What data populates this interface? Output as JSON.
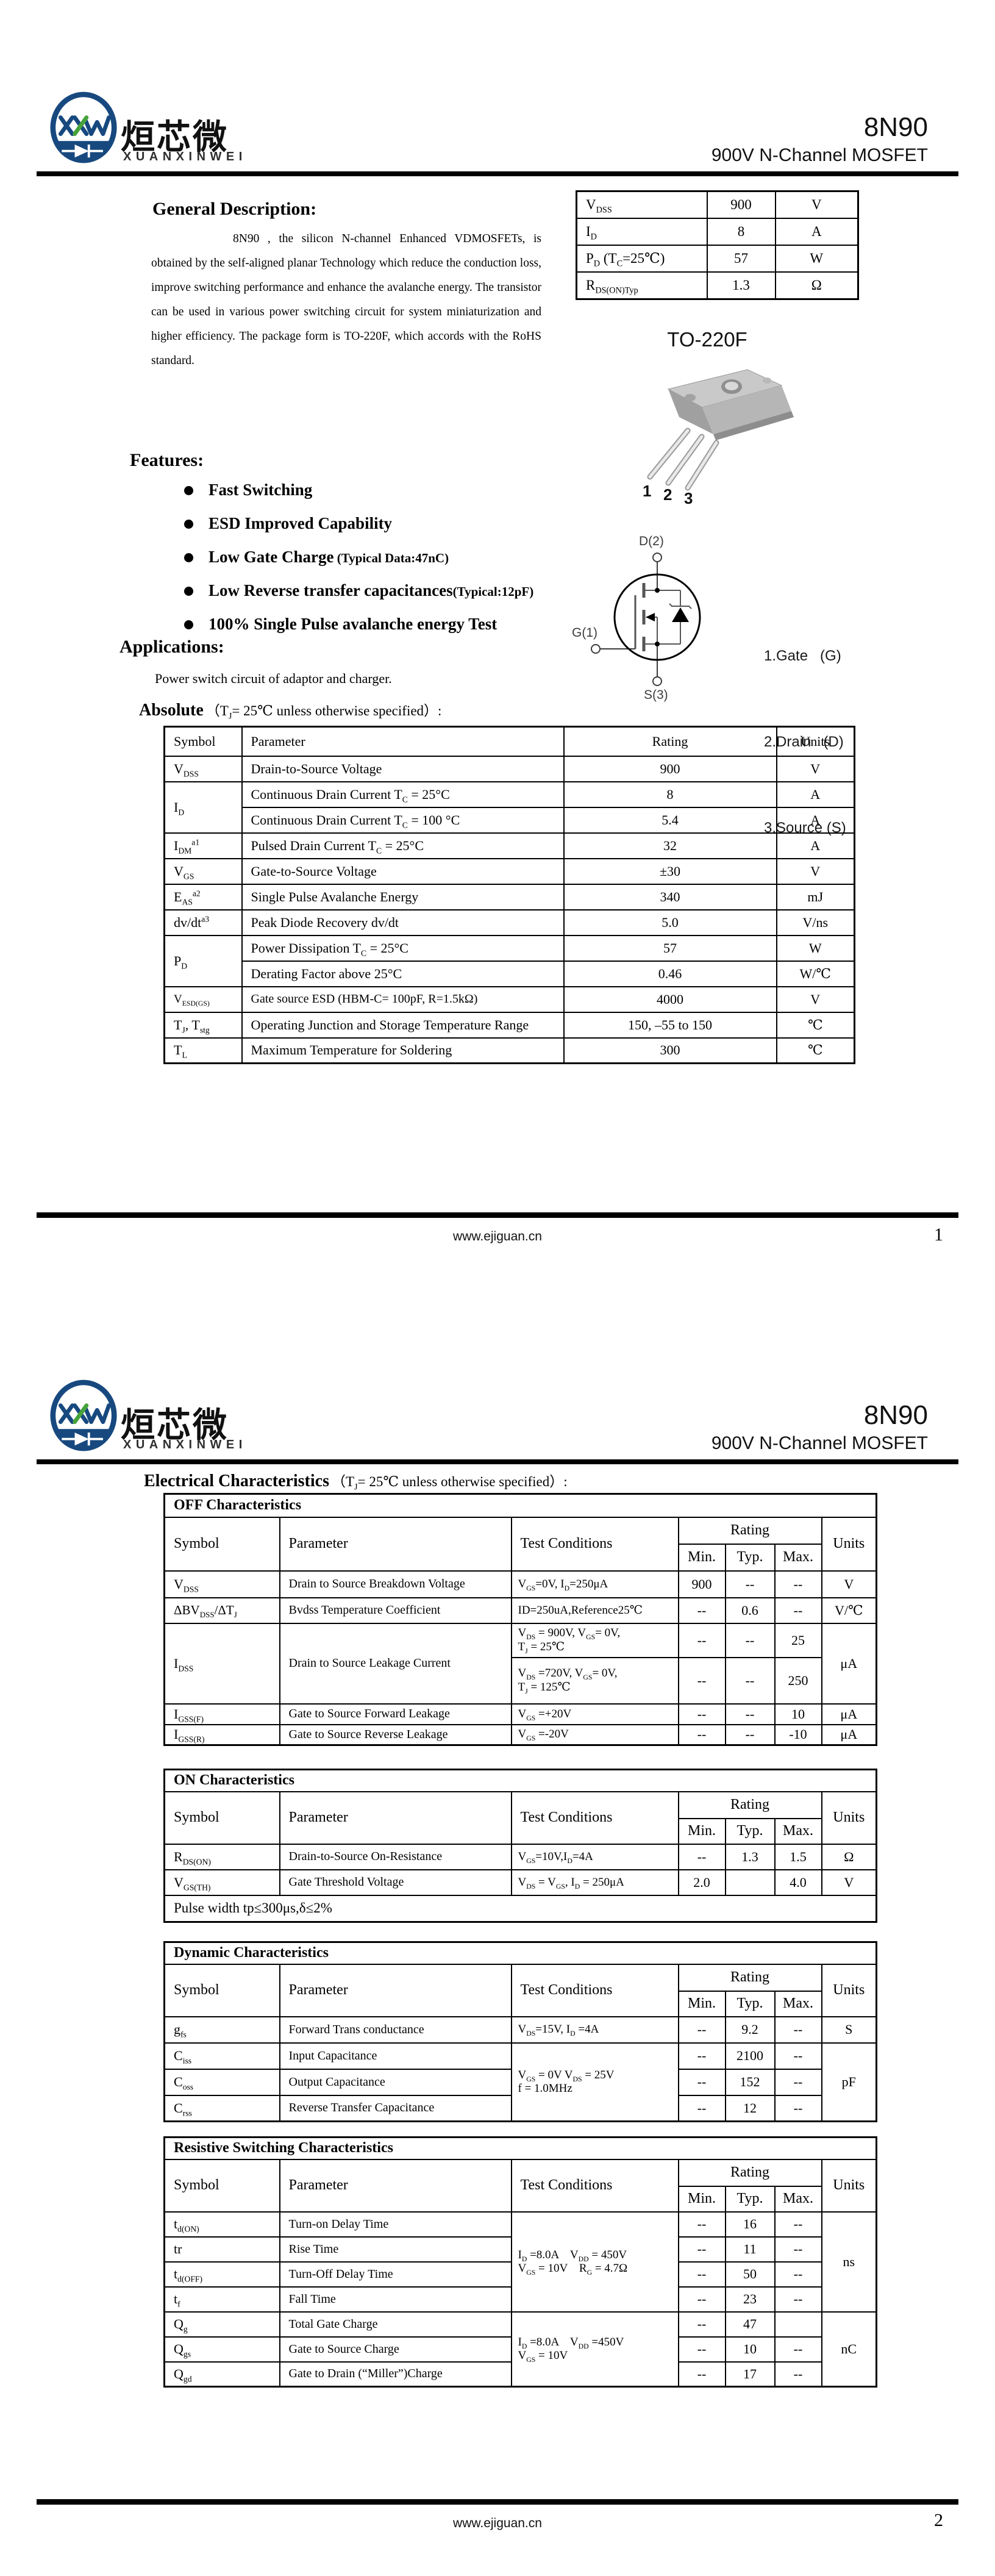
{
  "doc": {
    "brand_cn": "烜芯微",
    "brand_en": "XUANXINWEI",
    "part": "8N90",
    "subtitle": "900V N-Channel MOSFET",
    "footer_url": "www.ejiguan.cn"
  },
  "page1": {
    "num": "1",
    "general": {
      "heading": "General Description:",
      "body": "8N90 , the silicon N-channel Enhanced VDMOSFETs, is obtained by the self-aligned planar Technology which reduce the conduction loss, improve switching performance and enhance the avalanche energy. The transistor can be used in various power switching circuit for system miniaturization and higher efficiency. The package form is TO-220F, which accords with the RoHS standard."
    },
    "summary": {
      "rows": [
        {
          "param": "V~DSS~",
          "value": "900",
          "unit": "V"
        },
        {
          "param": "I~D~",
          "value": "8",
          "unit": "A"
        },
        {
          "param": "P~D~ (T~C~=25℃)",
          "value": "57",
          "unit": "W"
        },
        {
          "param": "R~DS(ON)Typ~",
          "value": "1.3",
          "unit": "Ω"
        }
      ]
    },
    "package": {
      "label": "TO-220F",
      "pins": [
        "1",
        "2",
        "3"
      ]
    },
    "diagram": {
      "d": "D(2)",
      "g": "G(1)",
      "s": "S(3)",
      "legend": [
        "1.Gate   (G)",
        "2.Drain   (D)",
        "3.Source (S)"
      ]
    },
    "features": {
      "heading": "Features:",
      "items": [
        {
          "main": "Fast Switching",
          "note": ""
        },
        {
          "main": "ESD Improved Capability",
          "note": ""
        },
        {
          "main": "Low Gate Charge",
          "note": "  (Typical Data:47nC)"
        },
        {
          "main": "Low Reverse transfer capacitances",
          "note": "(Typical:12pF)"
        },
        {
          "main": "100% Single Pulse avalanche energy Test",
          "note": ""
        }
      ]
    },
    "applications": {
      "heading": "Applications:",
      "body": "Power switch circuit of adaptor and charger."
    },
    "absolute": {
      "heading_bold": "Absolute",
      "heading_rest": "（T~J~= 25℃ unless otherwise specified）:",
      "headers": {
        "symbol": "Symbol",
        "parameter": "Parameter",
        "rating": "Rating",
        "units": "Units"
      },
      "rows": [
        {
          "sym": "V~DSS~",
          "par": "Drain-to-Source Voltage",
          "val": "900",
          "unit": "V"
        },
        {
          "sym": "I~D~",
          "par": "Continuous Drain Current T~C~ = 25°C",
          "val": "8",
          "unit": "A"
        },
        {
          "par": "Continuous Drain Current T~C~ = 100 °C",
          "val": "5.4",
          "unit": "A"
        },
        {
          "sym": "I~DM~^a1^",
          "par": "Pulsed Drain Current T~C~ = 25°C",
          "val": "32",
          "unit": "A"
        },
        {
          "sym": "V~GS~",
          "par": "Gate-to-Source Voltage",
          "val": "±30",
          "unit": "V"
        },
        {
          "sym": "E~AS~^a2^",
          "par": "Single Pulse Avalanche Energy",
          "val": "340",
          "unit": "mJ"
        },
        {
          "sym": "dv/dt^a3^",
          "par": "Peak Diode Recovery dv/dt",
          "val": "5.0",
          "unit": "V/ns"
        },
        {
          "sym": "P~D~",
          "par": "Power Dissipation T~C~ = 25°C",
          "val": "57",
          "unit": "W"
        },
        {
          "par": "Derating Factor above 25°C",
          "val": "0.46",
          "unit": "W/℃"
        },
        {
          "sym": "V~ESD(GS)~",
          "par": "Gate source ESD (HBM-C= 100pF, R=1.5kΩ)",
          "val": "4000",
          "unit": "V"
        },
        {
          "sym": "T~J~,  T~stg~",
          "par": "Operating Junction and Storage Temperature Range",
          "val": "150, –55 to 150",
          "unit": "℃"
        },
        {
          "sym": "T~L~",
          "par": "Maximum Temperature for Soldering",
          "val": "300",
          "unit": "℃"
        }
      ]
    }
  },
  "page2": {
    "num": "2",
    "heading_bold": "Electrical Characteristics",
    "heading_rest": "（T~J~= 25℃ unless otherwise specified）:",
    "col": {
      "symbol": "Symbol",
      "parameter": "Parameter",
      "test": "Test Conditions",
      "rating": "Rating",
      "min": "Min.",
      "typ": "Typ.",
      "max": "Max.",
      "units": "Units"
    },
    "off": {
      "title": "OFF Characteristics",
      "rows": [
        {
          "sym": "V~DSS~",
          "par": "Drain to Source Breakdown Voltage",
          "test": "V~GS~=0V, I~D~=250μA",
          "min": "900",
          "typ": "--",
          "max": "--",
          "unit": "V"
        },
        {
          "sym": "ΔBV~DSS~/ΔT~J~",
          "par": "Bvdss Temperature Coefficient",
          "test": "ID=250uA,Reference25℃",
          "min": "--",
          "typ": "0.6",
          "max": "--",
          "unit": "V/℃"
        },
        {
          "sym": "I~DSS~",
          "par": "Drain to Source Leakage Current",
          "test": "V~DS~ = 900V, V~GS~= 0V,\nT~J~ = 25℃",
          "min": "--",
          "typ": "--",
          "max": "25",
          "unit": "μA"
        },
        {
          "test": "V~DS~ =720V, V~GS~= 0V,\nT~J~ = 125℃",
          "min": "--",
          "typ": "--",
          "max": "250"
        },
        {
          "sym": "I~GSS(F)~",
          "par": "Gate to Source Forward Leakage",
          "test": "V~GS~ =+20V",
          "min": "--",
          "typ": "--",
          "max": "10",
          "unit": "μA"
        },
        {
          "sym": "I~GSS(R)~",
          "par": "Gate to Source Reverse Leakage",
          "test": "V~GS~ =-20V",
          "min": "--",
          "typ": "--",
          "max": "-10",
          "unit": "μA"
        }
      ]
    },
    "on": {
      "title": "ON Characteristics",
      "rows": [
        {
          "sym": "R~DS(ON)~",
          "par": "Drain-to-Source On-Resistance",
          "test": "V~GS~=10V,I~D~=4A",
          "min": "--",
          "typ": "1.3",
          "max": "1.5",
          "unit": "Ω"
        },
        {
          "sym": "V~GS(TH)~",
          "par": "Gate Threshold Voltage",
          "test": "V~DS~ = V~GS~, I~D~ = 250μA",
          "min": "2.0",
          "typ": "",
          "max": "4.0",
          "unit": "V"
        }
      ],
      "note": "Pulse width tp≤300μs,δ≤2%"
    },
    "dyn": {
      "title": "Dynamic Characteristics",
      "rows": [
        {
          "sym": "g~fs~",
          "par": "Forward Trans conductance",
          "test": "V~DS~=15V, I~D~ =4A",
          "min": "--",
          "typ": "9.2",
          "max": "--",
          "unit": "S"
        },
        {
          "sym": "C~iss~",
          "par": "Input Capacitance",
          "test": "V~GS~ = 0V V~DS~ = 25V\nf = 1.0MHz",
          "min": "--",
          "typ": "2100",
          "max": "--",
          "unit": "pF"
        },
        {
          "sym": "C~oss~",
          "par": "Output Capacitance",
          "min": "--",
          "typ": "152",
          "max": "--"
        },
        {
          "sym": "C~rss~",
          "par": "Reverse Transfer Capacitance",
          "min": "--",
          "typ": "12",
          "max": "--"
        }
      ]
    },
    "sw": {
      "title": "Resistive Switching Characteristics",
      "rows": [
        {
          "sym": "t~d(ON)~",
          "par": "Turn-on Delay Time",
          "test": "I~D~ =8.0A    V~DD~ = 450V\nV~GS~ = 10V    R~G~ = 4.7Ω",
          "min": "--",
          "typ": "16",
          "max": "--",
          "unit": "ns"
        },
        {
          "sym": "tr",
          "par": "Rise Time",
          "min": "--",
          "typ": "11",
          "max": "--"
        },
        {
          "sym": "t~d(OFF)~",
          "par": "Turn-Off Delay Time",
          "min": "--",
          "typ": "50",
          "max": "--"
        },
        {
          "sym": "t~f~",
          "par": "Fall Time",
          "min": "--",
          "typ": "23",
          "max": "--"
        },
        {
          "sym": "Q~g~",
          "par": "Total Gate Charge",
          "test": "I~D~ =8.0A    V~DD~ =450V\nV~GS~ = 10V",
          "min": "--",
          "typ": "47",
          "max": "",
          "unit": "nC"
        },
        {
          "sym": "Q~gs~",
          "par": "Gate to Source Charge",
          "min": "--",
          "typ": "10",
          "max": "--"
        },
        {
          "sym": "Q~gd~",
          "par": "Gate to Drain (“Miller”)Charge",
          "min": "--",
          "typ": "17",
          "max": "--"
        }
      ]
    }
  }
}
